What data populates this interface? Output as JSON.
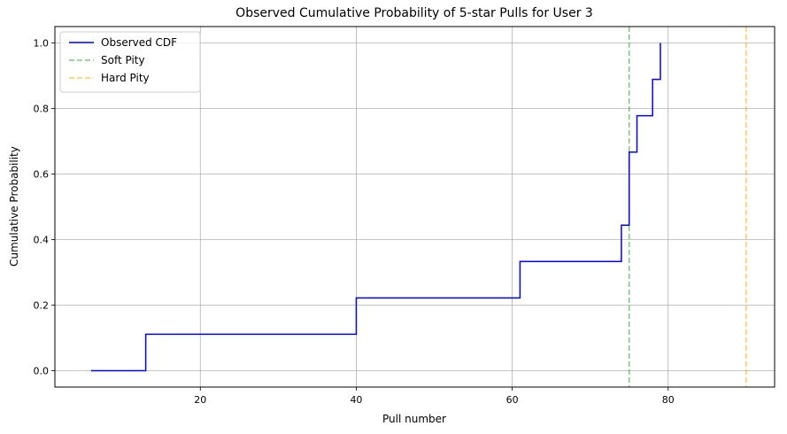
{
  "chart_data": {
    "type": "line",
    "title": "Observed Cumulative Probability of 5-star Pulls for User 3",
    "xlabel": "Pull number",
    "ylabel": "Cumulative Probability",
    "xlim": [
      1.35,
      93.65
    ],
    "ylim": [
      -0.05,
      1.05
    ],
    "xticks": [
      20,
      40,
      60,
      80
    ],
    "yticks": [
      0.0,
      0.2,
      0.4,
      0.6,
      0.8,
      1.0
    ],
    "xtick_labels": [
      "20",
      "40",
      "60",
      "80"
    ],
    "ytick_labels": [
      "0.0",
      "0.2",
      "0.4",
      "0.6",
      "0.8",
      "1.0"
    ],
    "grid": true,
    "legend_position": "top-left",
    "series": [
      {
        "name": "Observed CDF",
        "color": "#0000ff",
        "style": "step-post",
        "x": [
          6,
          13,
          40,
          61,
          74,
          75,
          76,
          78,
          79
        ],
        "y": [
          0.0,
          0.111,
          0.222,
          0.333,
          0.444,
          0.667,
          0.778,
          0.889,
          1.0
        ]
      }
    ],
    "vlines": [
      {
        "name": "Soft Pity",
        "x": 75,
        "color": "#2ca02c",
        "style": "dashed"
      },
      {
        "name": "Hard Pity",
        "x": 90,
        "color": "#ffa500",
        "style": "dashed"
      }
    ]
  }
}
